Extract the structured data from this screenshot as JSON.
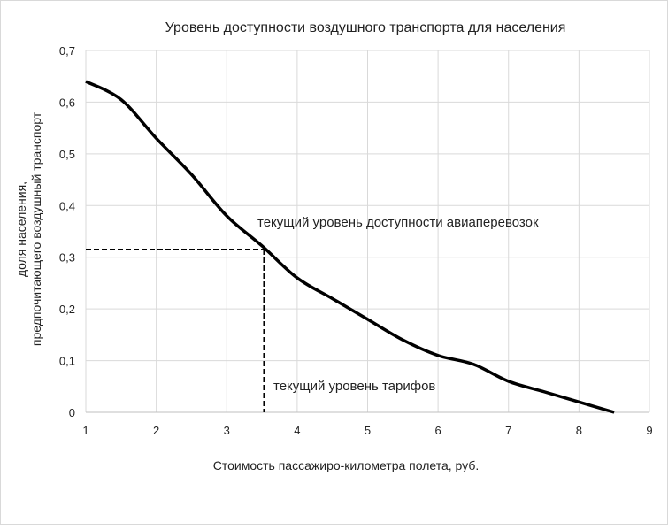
{
  "chart_data": {
    "type": "line",
    "title": "Уровень доступности воздушного транспорта для населения",
    "xlabel": "Стоимость пассажиро-километра полета, руб.",
    "ylabel": "доля населения, предпочитающего воздушный транспорт",
    "ylabel_lines": [
      "доля населения,",
      "предпочитающего воздушный транспорт"
    ],
    "xlim": [
      1,
      9
    ],
    "ylim": [
      0,
      0.7
    ],
    "xticks": [
      "1",
      "2",
      "3",
      "4",
      "5",
      "6",
      "7",
      "8",
      "9"
    ],
    "yticks": [
      "0",
      "0,1",
      "0,2",
      "0,3",
      "0,4",
      "0,5",
      "0,6",
      "0,7"
    ],
    "grid": true,
    "line_color": "#000000",
    "x": [
      1,
      1.5,
      2,
      2.5,
      3,
      3.5,
      4,
      4.5,
      5,
      5.5,
      6,
      6.5,
      7,
      7.5,
      8,
      8.5
    ],
    "y": [
      0.64,
      0.605,
      0.53,
      0.46,
      0.38,
      0.322,
      0.26,
      0.22,
      0.18,
      0.14,
      0.11,
      0.093,
      0.06,
      0.04,
      0.02,
      0.0
    ],
    "reference": {
      "x": 3.53,
      "y": 0.315
    },
    "annotations": {
      "availability": "текущий уровень доступности авиаперевозок",
      "tariff": "текущий уровень тарифов"
    }
  }
}
